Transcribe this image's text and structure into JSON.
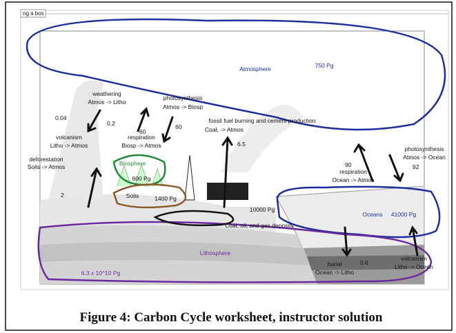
{
  "tab": "ng a box",
  "labels": [
    "Atmosphere",
    "750 Pg",
    "weathering",
    "Atmos -> Litho",
    "photosynthesis",
    "Atmos -> Biosp",
    "0.04",
    "0.2",
    "60",
    "60",
    "respiration",
    "Biosp -> Atmos",
    "fossil fuel burning and cement production",
    "Coal, -> Atmos",
    "6.5",
    "volcanism",
    "Litho -> Atmos",
    "deforestation",
    "Soils -> Atmos",
    "2",
    "Biosphere",
    "600 Pg",
    "Soils",
    "1400 Pg",
    "10000 Pg",
    "Coal, oil, and gas deposits",
    "photosynthesis",
    "Atmos -> Ocean",
    "90",
    "respiration",
    "Ocean -> Atmos",
    "92",
    "Oceans",
    "41000 Pg",
    "Lithosphere",
    "6.3 x 10^10 Pg",
    "burial",
    "Ocean -> Litho",
    "0.6",
    "volcanism",
    "Litho -> Ocean"
  ],
  "caption": "Figure 4: Carbon Cycle worksheet, instructor solution"
}
